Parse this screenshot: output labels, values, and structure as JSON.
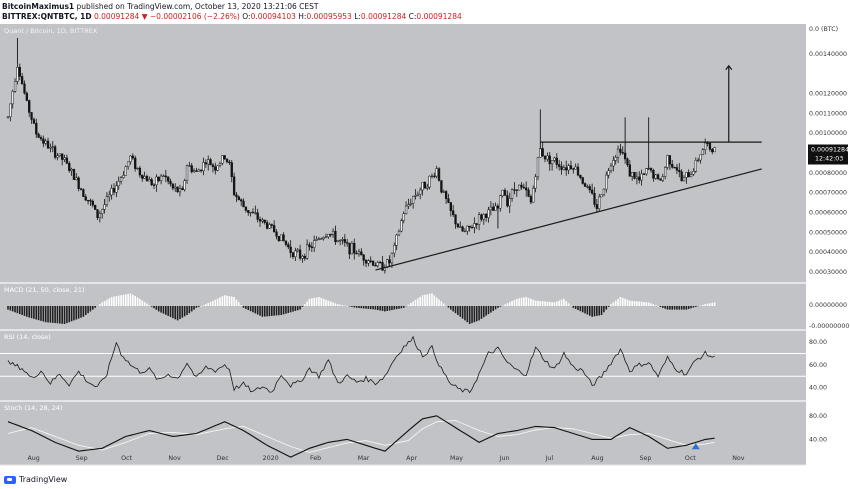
{
  "header": {
    "author": "BitcoinMaximus1",
    "published": "published on TradingView.com, October 13, 2020 13:21:06 CEST",
    "symbol": "BITTREX:QNTBTC, 1D",
    "last": "0.00091284",
    "change": "▼ −0.00002106 (−2.26%)",
    "o_label": "O:",
    "o": "0.00094103",
    "h_label": "H:",
    "h": "0.00095953",
    "l_label": "L:",
    "l": "0.00091284",
    "c_label": "C:",
    "c": "0.00091284"
  },
  "footer": {
    "brand": "TradingView"
  },
  "colors": {
    "panel": "#c2c3c7",
    "separator": "#e4e5e9",
    "candle": "#141414",
    "hist_light": "#ffffff",
    "hist_dark": "#202020",
    "stoch_k": "#111111",
    "stoch_d": "#f5f5f5",
    "price_tag": "#101010",
    "stoch_marker": "#2f6fd0"
  },
  "chart_data": {
    "type": "candlestick",
    "title": "Quant / Bitcoin, 1D, BITTREX",
    "unit_label": "0.0 (BTC)",
    "x_ticks": [
      "Aug",
      "Sep",
      "Oct",
      "Nov",
      "Dec",
      "2020",
      "Feb",
      "Mar",
      "Apr",
      "May",
      "Jun",
      "Jul",
      "Aug",
      "Sep",
      "Oct",
      "Nov"
    ],
    "y_ticks": [
      "0.00140000",
      "0.00120000",
      "0.00110000",
      "0.00100000",
      "0.00080000",
      "0.00070000",
      "0.00060000",
      "0.00050000",
      "0.00040000",
      "0.00030000"
    ],
    "ylim": [
      0.00025,
      0.0015
    ],
    "last_price": "0.00091284",
    "countdown": "12:42:03",
    "price_path": [
      [
        0,
        0.00108
      ],
      [
        2,
        0.00135
      ],
      [
        4,
        0.00115
      ],
      [
        6,
        0.001
      ],
      [
        9,
        0.00092
      ],
      [
        12,
        0.00086
      ],
      [
        14,
        0.00078
      ],
      [
        16,
        0.0007
      ],
      [
        18,
        0.00063
      ],
      [
        19,
        0.00058
      ],
      [
        21,
        0.00066
      ],
      [
        24,
        0.00078
      ],
      [
        26,
        0.00088
      ],
      [
        28,
        0.0008
      ],
      [
        31,
        0.00074
      ],
      [
        33,
        0.00079
      ],
      [
        35,
        0.00072
      ],
      [
        37,
        0.0007
      ],
      [
        38,
        0.00084
      ],
      [
        40,
        0.0008
      ],
      [
        42,
        0.00086
      ],
      [
        44,
        0.00083
      ],
      [
        46,
        0.00088
      ],
      [
        47,
        0.00084
      ],
      [
        48,
        0.0007
      ],
      [
        50,
        0.00063
      ],
      [
        53,
        0.00057
      ],
      [
        56,
        0.00052
      ],
      [
        58,
        0.00047
      ],
      [
        60,
        0.00041
      ],
      [
        62,
        0.00038
      ],
      [
        64,
        0.00042
      ],
      [
        66,
        0.00047
      ],
      [
        68,
        0.0005
      ],
      [
        70,
        0.00046
      ],
      [
        72,
        0.00043
      ],
      [
        74,
        0.0004
      ],
      [
        76,
        0.00037
      ],
      [
        78,
        0.00034
      ],
      [
        79,
        0.00033
      ],
      [
        81,
        0.00035
      ],
      [
        82,
        0.00042
      ],
      [
        84,
        0.0006
      ],
      [
        86,
        0.00068
      ],
      [
        88,
        0.00073
      ],
      [
        90,
        0.00078
      ],
      [
        91,
        0.00082
      ],
      [
        92,
        0.00072
      ],
      [
        94,
        0.0006
      ],
      [
        96,
        0.00051
      ],
      [
        97,
        0.0005
      ],
      [
        98,
        0.00052
      ],
      [
        100,
        0.00057
      ],
      [
        102,
        0.0006
      ],
      [
        104,
        0.00062
      ],
      [
        105,
        0.00072
      ],
      [
        106,
        0.00066
      ],
      [
        108,
        0.00074
      ],
      [
        110,
        0.0007
      ],
      [
        111,
        0.00065
      ],
      [
        112,
        0.0008
      ],
      [
        113,
        0.00092
      ],
      [
        114,
        0.00088
      ],
      [
        116,
        0.00086
      ],
      [
        118,
        0.00083
      ],
      [
        120,
        0.00084
      ],
      [
        122,
        0.00076
      ],
      [
        124,
        0.00068
      ],
      [
        125,
        0.00063
      ],
      [
        126,
        0.0007
      ],
      [
        128,
        0.00086
      ],
      [
        130,
        0.00093
      ],
      [
        132,
        0.0008
      ],
      [
        134,
        0.00076
      ],
      [
        136,
        0.00082
      ],
      [
        138,
        0.00076
      ],
      [
        139,
        0.00078
      ],
      [
        140,
        0.00088
      ],
      [
        142,
        0.00082
      ],
      [
        143,
        0.00076
      ],
      [
        145,
        0.0008
      ],
      [
        147,
        0.0009
      ],
      [
        148,
        0.00094
      ],
      [
        150,
        0.00091
      ]
    ],
    "spikes": [
      [
        2,
        0.00148
      ],
      [
        113,
        0.00112
      ],
      [
        131,
        0.00108
      ],
      [
        136,
        0.00108
      ],
      [
        104,
        0.00052
      ]
    ],
    "lines": {
      "resistance": [
        [
          113,
          0.000955
        ],
        [
          160,
          0.000955
        ]
      ],
      "support": [
        [
          78,
          0.00031
        ],
        [
          160,
          0.00082
        ]
      ],
      "target_arrow": [
        [
          153,
          0.000955
        ],
        [
          153,
          0.00134
        ]
      ]
    },
    "macd": {
      "title": "MACD (21, 50, close, 21)",
      "y_ticks": [
        "0.00000000",
        "-0.00000000"
      ],
      "path": [
        [
          0,
          -0.2
        ],
        [
          4,
          -0.6
        ],
        [
          8,
          -0.9
        ],
        [
          12,
          -1.0
        ],
        [
          16,
          -0.6
        ],
        [
          20,
          0.2
        ],
        [
          22,
          0.5
        ],
        [
          26,
          0.7
        ],
        [
          28,
          0.4
        ],
        [
          32,
          -0.3
        ],
        [
          36,
          -0.8
        ],
        [
          38,
          -0.5
        ],
        [
          40,
          -0.1
        ],
        [
          42,
          0.1
        ],
        [
          46,
          0.6
        ],
        [
          48,
          0.5
        ],
        [
          50,
          -0.1
        ],
        [
          54,
          -0.6
        ],
        [
          58,
          -0.5
        ],
        [
          62,
          -0.2
        ],
        [
          64,
          0.4
        ],
        [
          66,
          0.5
        ],
        [
          70,
          0.1
        ],
        [
          74,
          -0.1
        ],
        [
          78,
          -0.2
        ],
        [
          80,
          -0.3
        ],
        [
          84,
          -0.1
        ],
        [
          88,
          0.6
        ],
        [
          90,
          0.7
        ],
        [
          94,
          -0.2
        ],
        [
          98,
          -1.0
        ],
        [
          100,
          -0.8
        ],
        [
          104,
          -0.1
        ],
        [
          108,
          0.4
        ],
        [
          110,
          0.5
        ],
        [
          112,
          0.3
        ],
        [
          116,
          0.2
        ],
        [
          118,
          0.4
        ],
        [
          120,
          -0.1
        ],
        [
          124,
          -0.6
        ],
        [
          126,
          -0.5
        ],
        [
          128,
          0.1
        ],
        [
          130,
          0.5
        ],
        [
          132,
          0.3
        ],
        [
          136,
          0.2
        ],
        [
          140,
          -0.2
        ],
        [
          144,
          -0.2
        ],
        [
          148,
          0.1
        ],
        [
          150,
          0.2
        ]
      ]
    },
    "rsi": {
      "title": "RSI (14, close)",
      "y_ticks": [
        "80.00",
        "60.00",
        "40.00"
      ],
      "levels": [
        70,
        50
      ],
      "ylim": [
        30,
        88
      ],
      "path": [
        [
          0,
          62
        ],
        [
          3,
          57
        ],
        [
          5,
          48
        ],
        [
          7,
          55
        ],
        [
          9,
          44
        ],
        [
          11,
          52
        ],
        [
          13,
          43
        ],
        [
          15,
          54
        ],
        [
          17,
          45
        ],
        [
          19,
          40
        ],
        [
          21,
          52
        ],
        [
          23,
          80
        ],
        [
          24,
          70
        ],
        [
          26,
          60
        ],
        [
          28,
          54
        ],
        [
          30,
          56
        ],
        [
          32,
          46
        ],
        [
          34,
          52
        ],
        [
          36,
          48
        ],
        [
          38,
          62
        ],
        [
          40,
          48
        ],
        [
          42,
          58
        ],
        [
          44,
          55
        ],
        [
          46,
          60
        ],
        [
          47,
          56
        ],
        [
          48,
          39
        ],
        [
          50,
          43
        ],
        [
          52,
          36
        ],
        [
          54,
          41
        ],
        [
          56,
          36
        ],
        [
          58,
          52
        ],
        [
          60,
          42
        ],
        [
          62,
          45
        ],
        [
          64,
          57
        ],
        [
          66,
          50
        ],
        [
          68,
          64
        ],
        [
          70,
          44
        ],
        [
          72,
          50
        ],
        [
          74,
          45
        ],
        [
          76,
          48
        ],
        [
          78,
          44
        ],
        [
          80,
          50
        ],
        [
          82,
          65
        ],
        [
          84,
          76
        ],
        [
          86,
          83
        ],
        [
          88,
          68
        ],
        [
          90,
          75
        ],
        [
          92,
          56
        ],
        [
          94,
          43
        ],
        [
          96,
          38
        ],
        [
          98,
          36
        ],
        [
          100,
          52
        ],
        [
          102,
          70
        ],
        [
          104,
          74
        ],
        [
          106,
          62
        ],
        [
          108,
          55
        ],
        [
          110,
          52
        ],
        [
          112,
          75
        ],
        [
          114,
          64
        ],
        [
          116,
          56
        ],
        [
          118,
          70
        ],
        [
          120,
          58
        ],
        [
          122,
          55
        ],
        [
          124,
          42
        ],
        [
          126,
          50
        ],
        [
          128,
          62
        ],
        [
          130,
          74
        ],
        [
          132,
          55
        ],
        [
          134,
          60
        ],
        [
          136,
          62
        ],
        [
          138,
          50
        ],
        [
          140,
          66
        ],
        [
          142,
          56
        ],
        [
          144,
          52
        ],
        [
          146,
          64
        ],
        [
          148,
          70
        ],
        [
          150,
          66
        ]
      ]
    },
    "stoch": {
      "title": "Stoch (14, 28, 24)",
      "y_ticks": [
        "80.00",
        "40.00"
      ],
      "ylim": [
        0,
        100
      ],
      "k": [
        [
          0,
          70
        ],
        [
          5,
          55
        ],
        [
          10,
          35
        ],
        [
          15,
          20
        ],
        [
          20,
          25
        ],
        [
          25,
          45
        ],
        [
          30,
          55
        ],
        [
          35,
          45
        ],
        [
          40,
          50
        ],
        [
          46,
          70
        ],
        [
          50,
          55
        ],
        [
          55,
          30
        ],
        [
          60,
          10
        ],
        [
          64,
          25
        ],
        [
          68,
          35
        ],
        [
          72,
          40
        ],
        [
          76,
          30
        ],
        [
          80,
          20
        ],
        [
          85,
          55
        ],
        [
          88,
          75
        ],
        [
          91,
          80
        ],
        [
          95,
          60
        ],
        [
          100,
          35
        ],
        [
          104,
          50
        ],
        [
          108,
          55
        ],
        [
          112,
          62
        ],
        [
          116,
          60
        ],
        [
          120,
          50
        ],
        [
          124,
          40
        ],
        [
          128,
          40
        ],
        [
          132,
          60
        ],
        [
          136,
          45
        ],
        [
          140,
          25
        ],
        [
          144,
          30
        ],
        [
          148,
          40
        ],
        [
          150,
          42
        ]
      ],
      "d": [
        [
          0,
          50
        ],
        [
          5,
          60
        ],
        [
          10,
          45
        ],
        [
          15,
          30
        ],
        [
          20,
          22
        ],
        [
          25,
          35
        ],
        [
          30,
          50
        ],
        [
          35,
          52
        ],
        [
          40,
          48
        ],
        [
          46,
          58
        ],
        [
          50,
          62
        ],
        [
          55,
          45
        ],
        [
          60,
          28
        ],
        [
          64,
          18
        ],
        [
          68,
          26
        ],
        [
          72,
          34
        ],
        [
          76,
          38
        ],
        [
          80,
          30
        ],
        [
          85,
          38
        ],
        [
          88,
          58
        ],
        [
          91,
          70
        ],
        [
          95,
          72
        ],
        [
          100,
          55
        ],
        [
          104,
          45
        ],
        [
          108,
          48
        ],
        [
          112,
          56
        ],
        [
          116,
          60
        ],
        [
          120,
          58
        ],
        [
          124,
          50
        ],
        [
          128,
          42
        ],
        [
          132,
          48
        ],
        [
          136,
          50
        ],
        [
          140,
          40
        ],
        [
          144,
          30
        ],
        [
          148,
          32
        ],
        [
          150,
          35
        ]
      ]
    }
  }
}
